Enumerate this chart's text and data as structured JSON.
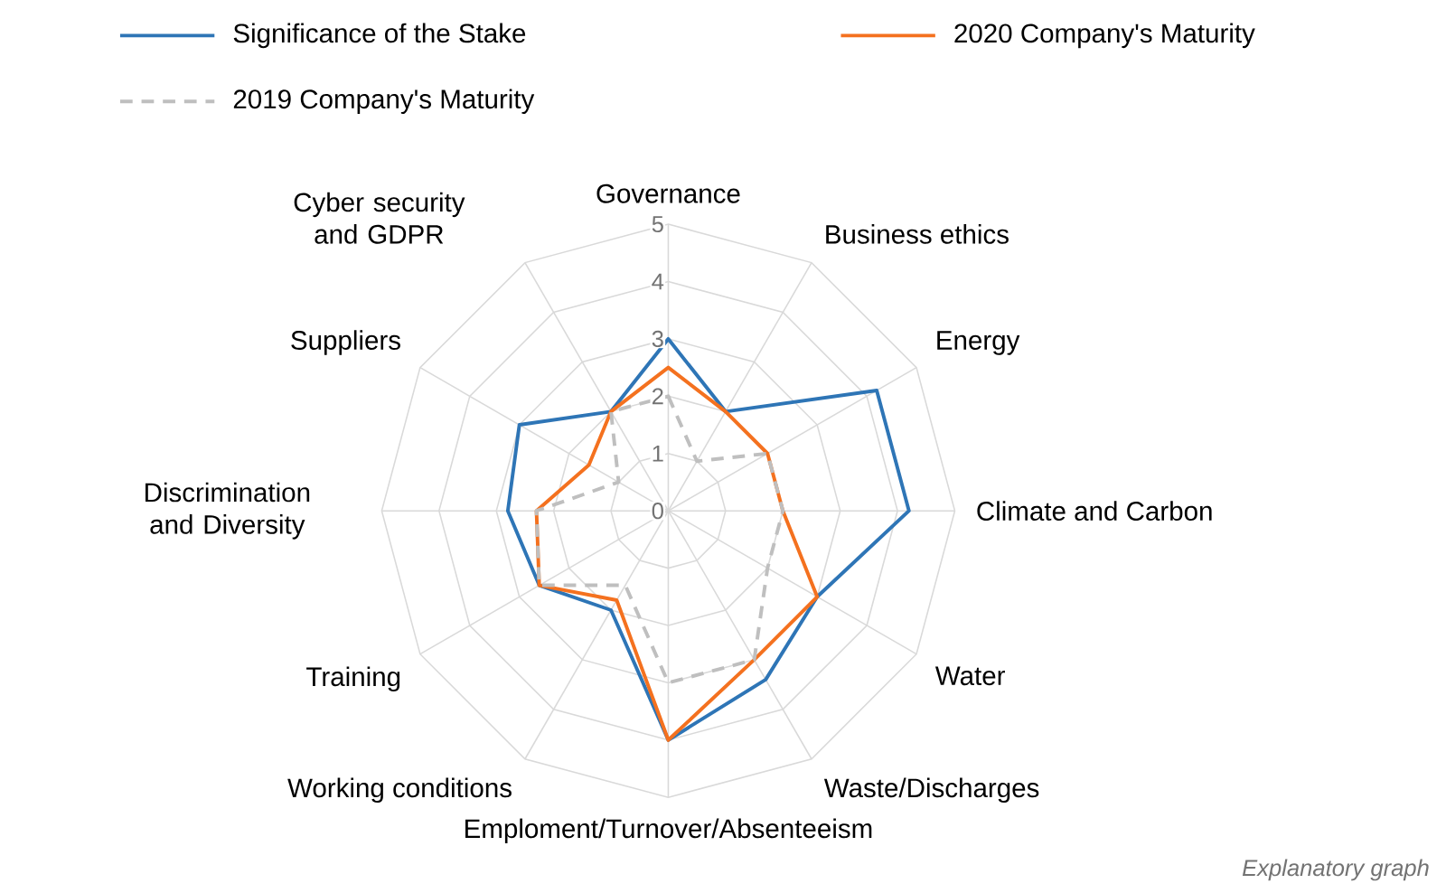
{
  "chart_data": {
    "type": "radar",
    "categories": [
      "Governance",
      "Business ethics",
      "Energy",
      "Climate and Carbon",
      "Water",
      "Waste/Discharges",
      "Emploment/Turnover/Absenteeism",
      "Working conditions",
      "Training",
      "Discrimination and Diversity",
      "Suppliers",
      "Cyber security and GDPR"
    ],
    "series": [
      {
        "name": "Significance of the Stake",
        "color": "#2e75b6",
        "values": [
          3,
          2,
          4.2,
          4.2,
          3,
          3.4,
          4,
          2,
          2.6,
          2.8,
          3,
          2
        ]
      },
      {
        "name": "2020 Company's Maturity",
        "color": "#f4711f",
        "values": [
          2.5,
          2,
          2,
          2,
          3,
          3,
          4,
          1.8,
          2.6,
          2.3,
          1.6,
          2
        ]
      },
      {
        "name": "2019 Company's Maturity",
        "color": "#bfbfbf",
        "line_style": "dashed",
        "values": [
          2,
          1,
          2,
          2,
          2,
          3,
          3,
          1.5,
          2.6,
          2.3,
          1,
          2
        ]
      }
    ],
    "ylim": [
      0,
      5
    ],
    "yticks": [
      0,
      1,
      2,
      3,
      4,
      5
    ],
    "grid": true,
    "legend": "top",
    "annotations": [
      "*Explanatory graph*"
    ]
  }
}
